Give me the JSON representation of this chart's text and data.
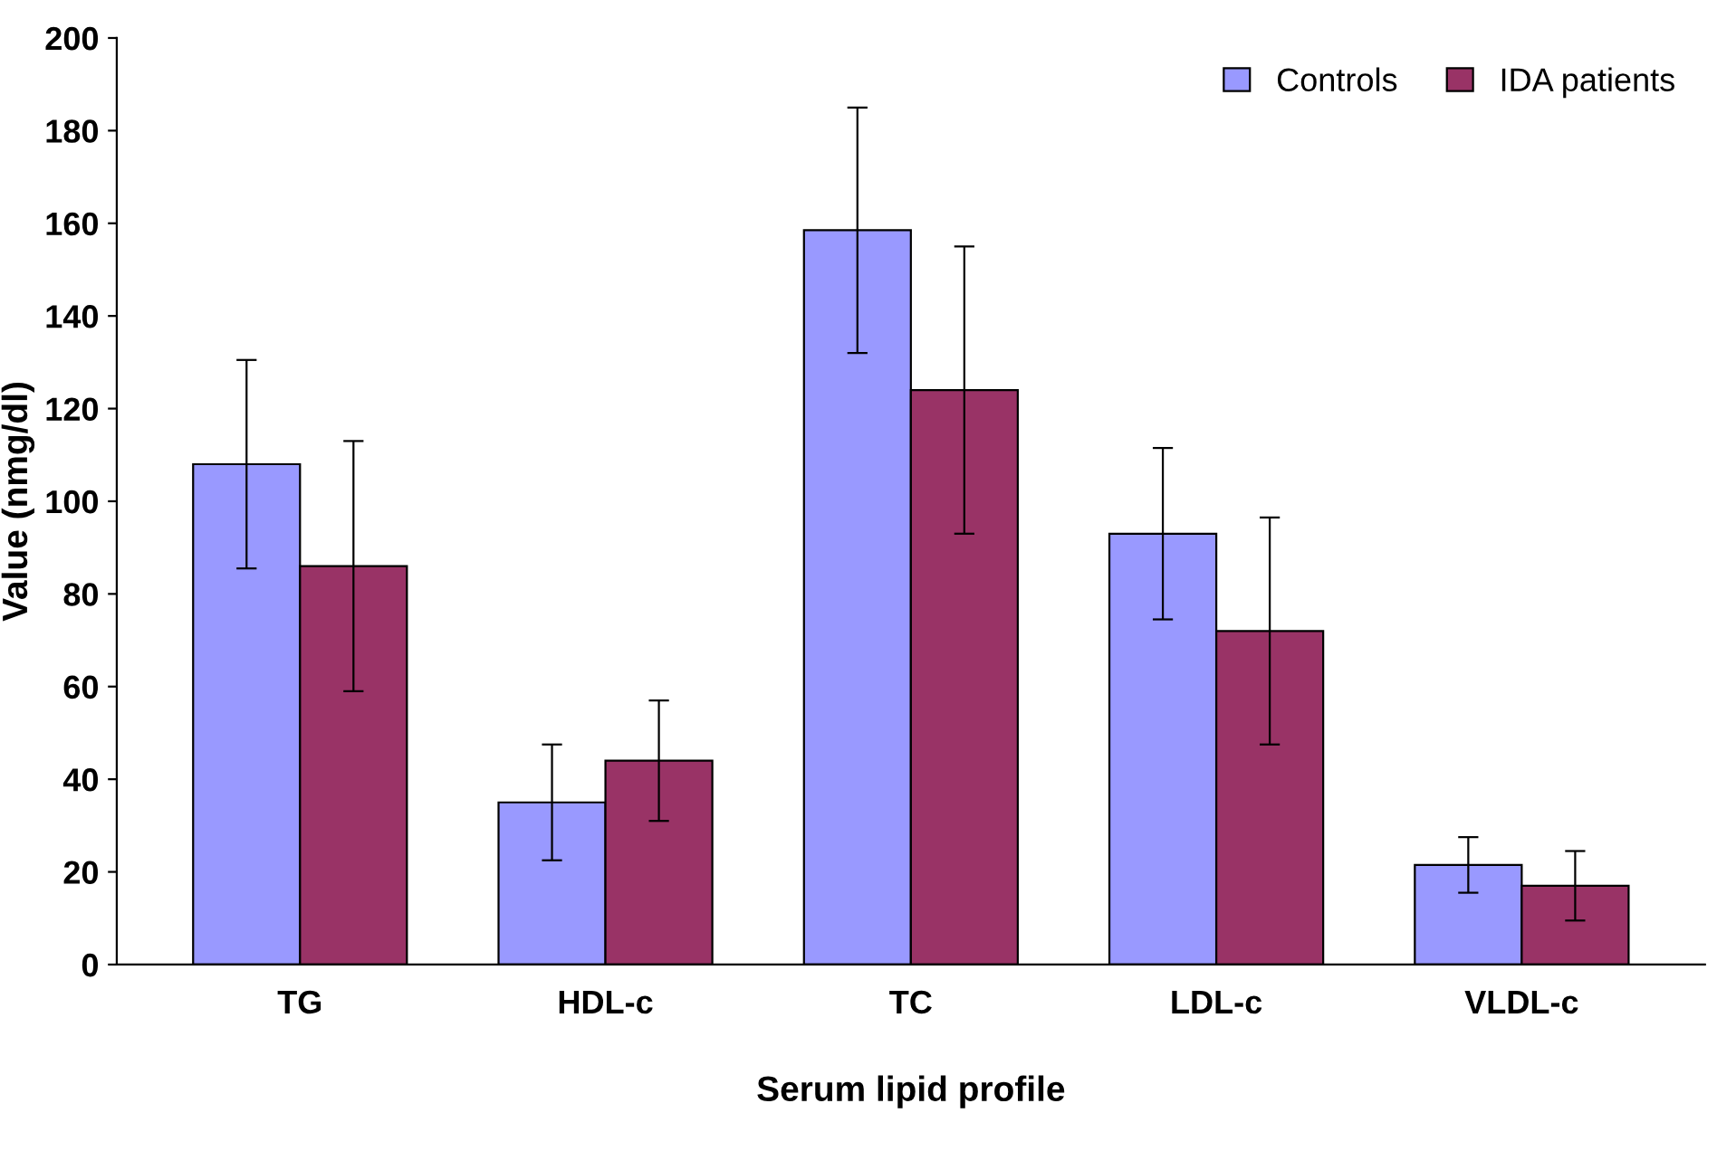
{
  "chart_data": {
    "type": "bar",
    "xlabel": "Serum lipid profile",
    "ylabel": "Value (nmg/dl)",
    "categories": [
      "TG",
      "HDL-c",
      "TC",
      "LDL-c",
      "VLDL-c"
    ],
    "series": [
      {
        "name": "Controls",
        "color": "#9999ff",
        "values": [
          108,
          35,
          158.5,
          93,
          21.5
        ],
        "errors": [
          22.5,
          12.5,
          26.5,
          18.5,
          6
        ]
      },
      {
        "name": "IDA patients",
        "color": "#993366",
        "values": [
          86,
          44,
          124,
          72,
          17
        ],
        "errors": [
          27,
          13,
          31,
          24.5,
          7.5
        ]
      }
    ],
    "ylim": [
      0,
      200
    ],
    "yticks": [
      0,
      20,
      40,
      60,
      80,
      100,
      120,
      140,
      160,
      180,
      200
    ],
    "grid": false,
    "legend": "top right"
  }
}
